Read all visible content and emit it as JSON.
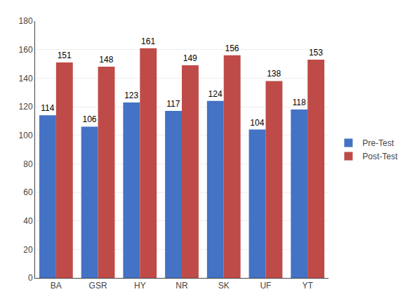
{
  "chart_data": {
    "type": "bar",
    "categories": [
      "BA",
      "GSR",
      "HY",
      "NR",
      "SK",
      "UF",
      "YT"
    ],
    "series": [
      {
        "name": "Pre-Test",
        "color": "#4472C4",
        "values": [
          114,
          106,
          123,
          117,
          124,
          104,
          118
        ]
      },
      {
        "name": "Post-Test",
        "color": "#BE4B48",
        "values": [
          151,
          148,
          161,
          149,
          156,
          138,
          153
        ]
      }
    ],
    "ylim": [
      0,
      180
    ],
    "yticks": [
      0,
      20,
      40,
      60,
      80,
      100,
      120,
      140,
      160,
      180
    ],
    "grid": true,
    "legend": "right",
    "data_labels": true
  }
}
